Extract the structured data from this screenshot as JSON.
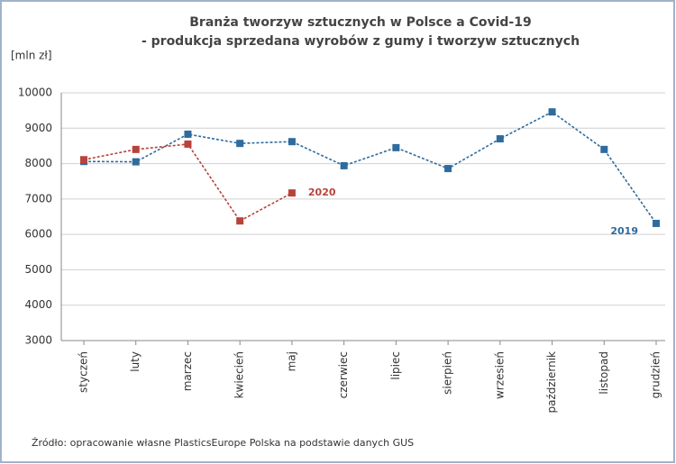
{
  "chart_data": {
    "type": "line",
    "title": "Branża tworzyw sztucznych w Polsce a Covid-19",
    "subtitle": "- produkcja sprzedana wyrobów z gumy i tworzyw sztucznych",
    "y_label": "[mln zł]",
    "source": "Źródło: opracowanie własne PlasticsEurope Polska na podstawie danych GUS",
    "categories": [
      "styczeń",
      "luty",
      "marzec",
      "kwiecień",
      "maj",
      "czerwiec",
      "lipiec",
      "sierpień",
      "wrzesień",
      "październik",
      "listopad",
      "grudzień"
    ],
    "series": [
      {
        "name": "2019",
        "color": "#2e6b9e",
        "values": [
          8060,
          8050,
          8830,
          8570,
          8620,
          7940,
          8450,
          7860,
          8700,
          9460,
          8400,
          6310
        ]
      },
      {
        "name": "2020",
        "color": "#b8433a",
        "values": [
          8110,
          8400,
          8550,
          6380,
          7170,
          null,
          null,
          null,
          null,
          null,
          null,
          null
        ]
      }
    ],
    "ylim": [
      3000,
      10000
    ],
    "yticks": [
      3000,
      4000,
      5000,
      6000,
      7000,
      8000,
      9000,
      10000
    ],
    "grid": true
  }
}
